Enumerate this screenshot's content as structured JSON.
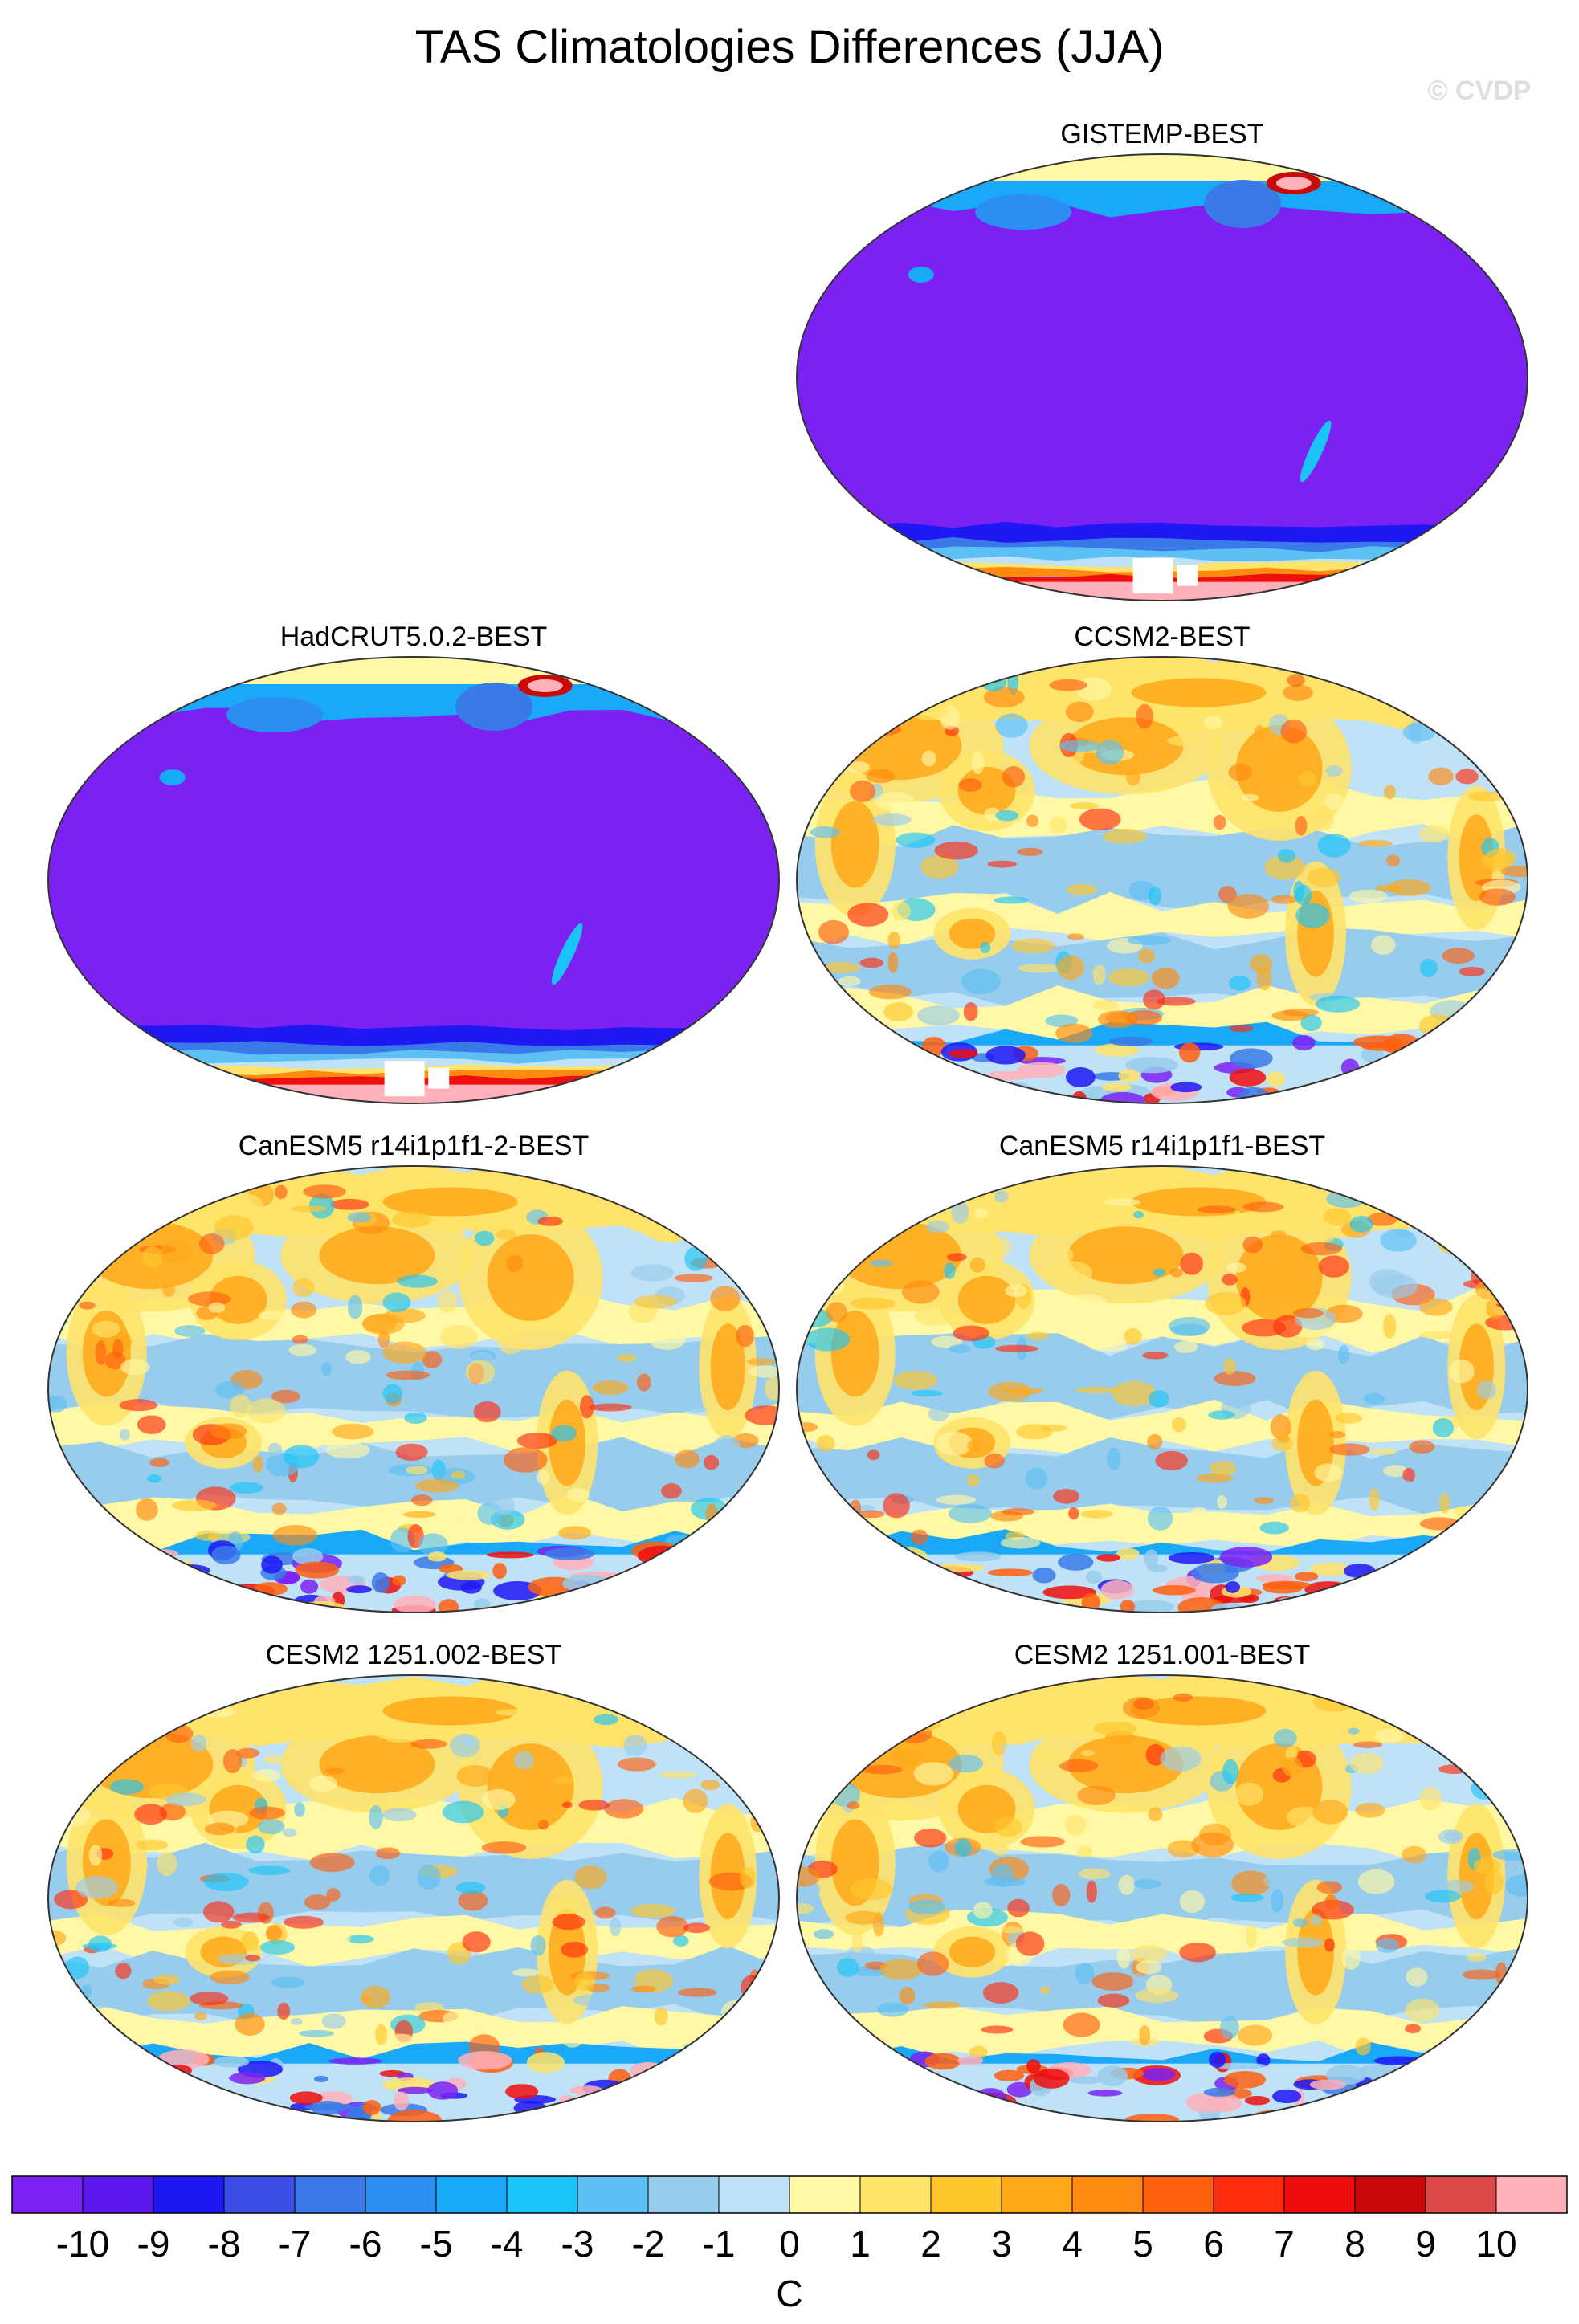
{
  "chart_data": {
    "type": "map-grid",
    "title": "TAS Climatologies Differences (JJA)",
    "watermark": "© CVDP",
    "projection": "Robinson-like, Pacific-centered",
    "background": "#ffffff",
    "panels": [
      {
        "name": "GISTEMP-BEST",
        "row": 0,
        "col": 1,
        "style": "mask"
      },
      {
        "name": "HadCRUT5.0.2-BEST",
        "row": 1,
        "col": 0,
        "style": "mask"
      },
      {
        "name": "CCSM2-BEST",
        "row": 1,
        "col": 1,
        "style": "model"
      },
      {
        "name": "CanESM5 r14i1p1f1-2-BEST",
        "row": 2,
        "col": 0,
        "style": "model"
      },
      {
        "name": "CanESM5 r14i1p1f1-BEST",
        "row": 2,
        "col": 1,
        "style": "model"
      },
      {
        "name": "CESM2 1251.002-BEST",
        "row": 3,
        "col": 0,
        "style": "model"
      },
      {
        "name": "CESM2 1251.001-BEST",
        "row": 3,
        "col": 1,
        "style": "model"
      }
    ],
    "colorbar": {
      "label": "C",
      "ticks": [
        -10,
        -9,
        -8,
        -7,
        -6,
        -5,
        -4,
        -3,
        -2,
        -1,
        0,
        1,
        2,
        3,
        4,
        5,
        6,
        7,
        8,
        9,
        10
      ],
      "tick_labels": [
        "-10",
        "-9",
        "-8",
        "-7",
        "-6",
        "-5",
        "-4",
        "-3",
        "-2",
        "-1",
        "0",
        "1",
        "2",
        "3",
        "4",
        "5",
        "6",
        "7",
        "8",
        "9",
        "10"
      ],
      "colors": [
        "#7b22f2",
        "#5a17ee",
        "#1f18f4",
        "#3a4ee6",
        "#3a7ae8",
        "#2a8ff0",
        "#1aa8f8",
        "#1bc4f8",
        "#5cc0f4",
        "#98ccec",
        "#bfe2f6",
        "#fff8a4",
        "#ffe36a",
        "#ffc62c",
        "#ffa818",
        "#ff8a10",
        "#ff6010",
        "#ff2c10",
        "#ee0e0e",
        "#c80a0a",
        "#dd4848",
        "#ffb0b8"
      ]
    }
  }
}
